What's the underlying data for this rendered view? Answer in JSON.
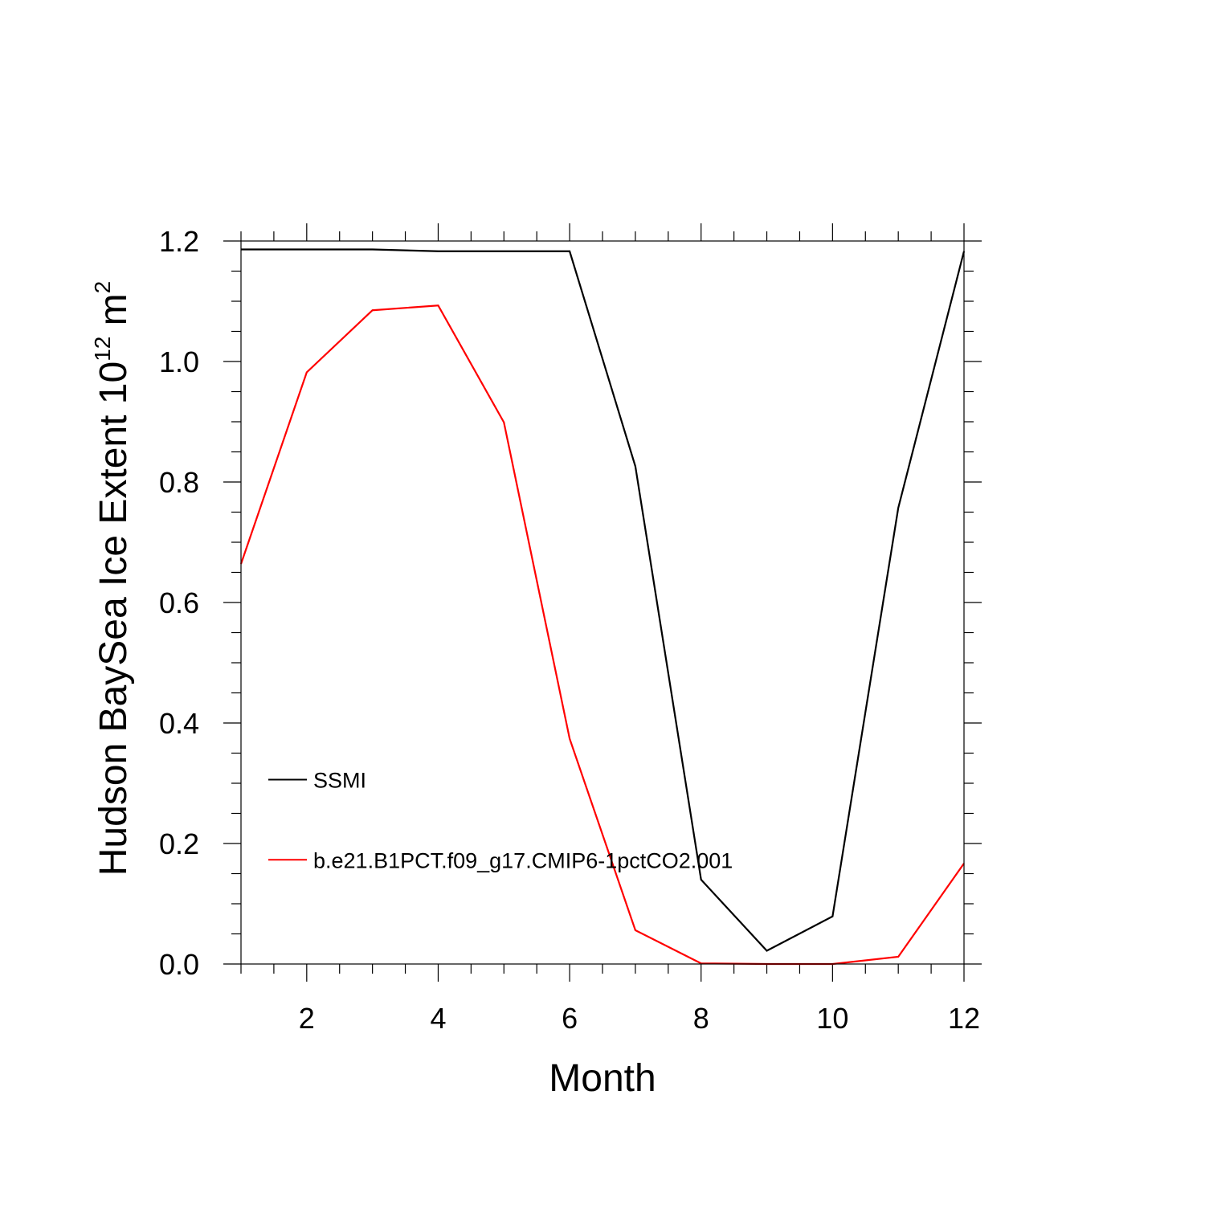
{
  "chart_data": {
    "type": "line",
    "title": "",
    "xlabel": "Month",
    "ylabel": {
      "prefix": "Hudson BaySea Ice Extent 10",
      "exponent": "12",
      "unit": " m",
      "unit_exponent": "2"
    },
    "xlim": [
      1,
      12
    ],
    "ylim": [
      0,
      1.2
    ],
    "x_ticks": [
      2,
      4,
      6,
      8,
      10,
      12
    ],
    "y_ticks": [
      0.0,
      0.2,
      0.4,
      0.6,
      0.8,
      1.0,
      1.2
    ],
    "y_tick_labels": [
      "0.0",
      "0.2",
      "0.4",
      "0.6",
      "0.8",
      "1.0",
      "1.2"
    ],
    "x": [
      1,
      2,
      3,
      4,
      5,
      6,
      7,
      8,
      9,
      10,
      11,
      12
    ],
    "series": [
      {
        "name": "SSMI",
        "color": "#000000",
        "values": [
          1.186,
          1.186,
          1.186,
          1.183,
          1.183,
          1.183,
          0.826,
          0.14,
          0.022,
          0.079,
          0.757,
          1.183
        ]
      },
      {
        "name": "b.e21.B1PCT.f09_g17.CMIP6-1pctCO2.001",
        "color": "#ff0000",
        "values": [
          0.664,
          0.982,
          1.085,
          1.093,
          0.899,
          0.374,
          0.056,
          0.001,
          0.0,
          0.0,
          0.012,
          0.167
        ]
      }
    ],
    "legend_position": "lower-left",
    "grid": false
  }
}
